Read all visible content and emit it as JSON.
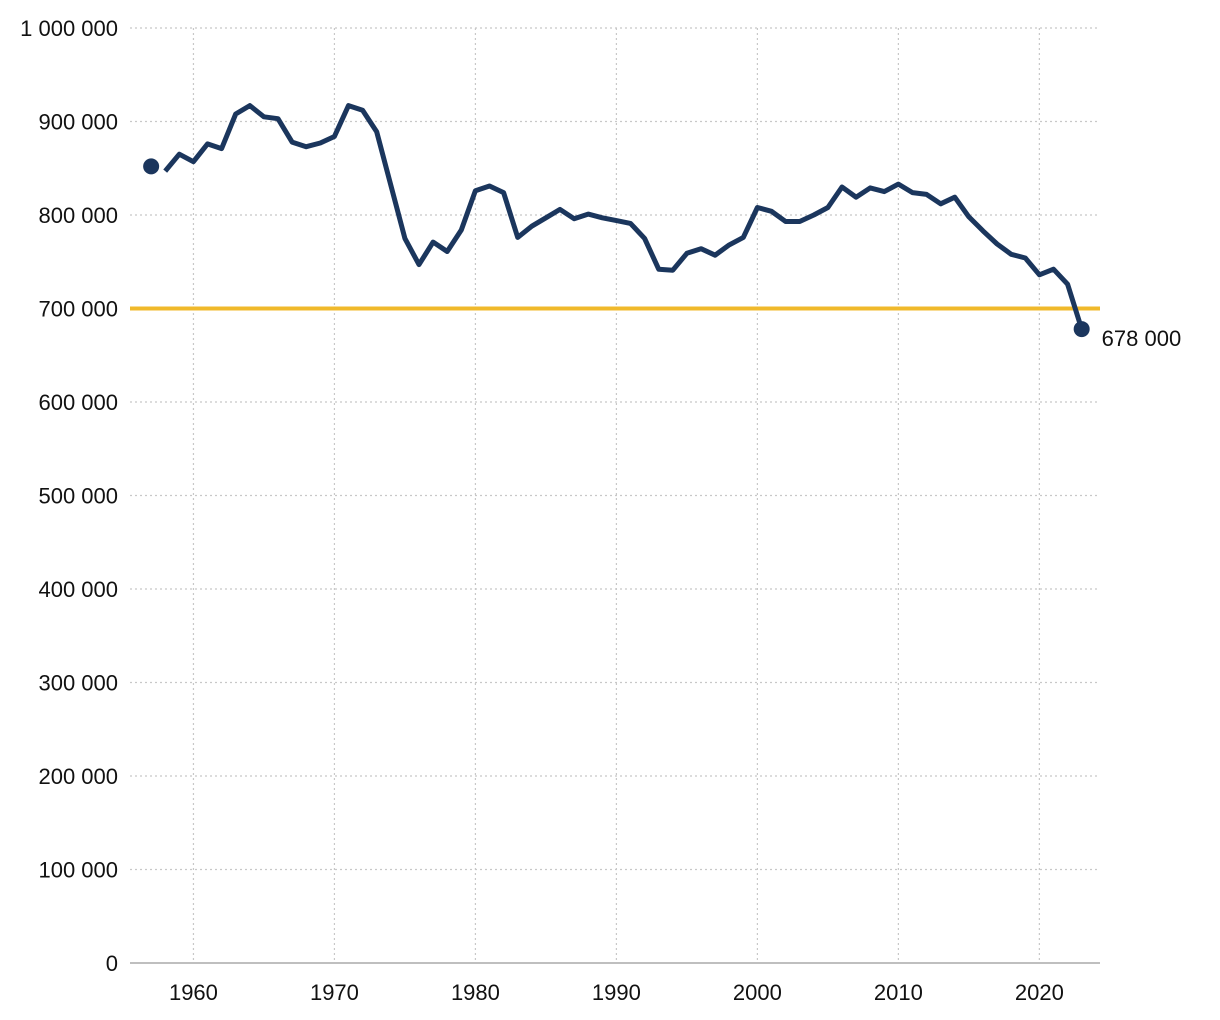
{
  "chart_data": {
    "type": "line",
    "title": "",
    "xlabel": "",
    "ylabel": "",
    "xlim": [
      1955.5,
      2024.3
    ],
    "ylim": [
      0,
      1000000
    ],
    "grid": true,
    "x_ticks": [
      1960,
      1970,
      1980,
      1990,
      2000,
      2010,
      2020
    ],
    "x_tick_labels": [
      "1960",
      "1970",
      "1980",
      "1990",
      "2000",
      "2010",
      "2020"
    ],
    "y_ticks": [
      0,
      100000,
      200000,
      300000,
      400000,
      500000,
      600000,
      700000,
      800000,
      900000,
      1000000
    ],
    "y_tick_labels": [
      "0",
      "100 000",
      "200 000",
      "300 000",
      "400 000",
      "500 000",
      "600 000",
      "700 000",
      "800 000",
      "900 000",
      "1 000 000"
    ],
    "reference_line": {
      "value": 700000,
      "color": "#f0b92b"
    },
    "series": [
      {
        "color": "#1b365d",
        "x": [
          1958,
          1959,
          1960,
          1961,
          1962,
          1963,
          1964,
          1965,
          1966,
          1967,
          1968,
          1969,
          1970,
          1971,
          1972,
          1973,
          1974,
          1975,
          1976,
          1977,
          1978,
          1979,
          1980,
          1981,
          1982,
          1983,
          1984,
          1985,
          1986,
          1987,
          1988,
          1989,
          1990,
          1991,
          1992,
          1993,
          1994,
          1995,
          1996,
          1997,
          1998,
          1999,
          2000,
          2001,
          2002,
          2003,
          2004,
          2005,
          2006,
          2007,
          2008,
          2009,
          2010,
          2011,
          2012,
          2013,
          2014,
          2015,
          2016,
          2017,
          2018,
          2019,
          2020,
          2021,
          2022,
          2023
        ],
        "y": [
          847000,
          865000,
          857000,
          876000,
          871000,
          908000,
          917000,
          905000,
          903000,
          878000,
          873000,
          877000,
          884000,
          917000,
          912000,
          889000,
          832000,
          775000,
          747000,
          771000,
          761000,
          784000,
          826000,
          831000,
          824000,
          776000,
          788000,
          797000,
          806000,
          796000,
          801000,
          797000,
          794000,
          791000,
          775000,
          742000,
          741000,
          759000,
          764000,
          757000,
          768000,
          776000,
          808000,
          804000,
          793000,
          793000,
          800000,
          808000,
          830000,
          819000,
          829000,
          825000,
          833000,
          824000,
          822000,
          812000,
          819000,
          798000,
          783000,
          769000,
          758000,
          754000,
          736000,
          742000,
          726000,
          678000
        ]
      }
    ],
    "markers": [
      {
        "x": 1957,
        "y": 852000,
        "label": ""
      },
      {
        "x": 2023,
        "y": 678000,
        "label": "678 000"
      }
    ]
  }
}
